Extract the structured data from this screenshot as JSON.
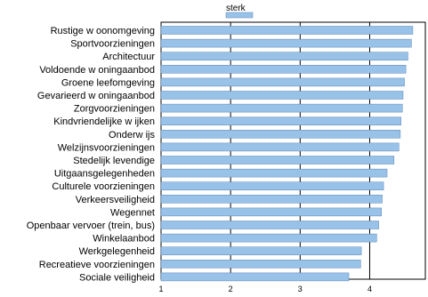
{
  "chart_data": {
    "type": "bar",
    "orientation": "horizontal",
    "categories": [
      "Rustige w oonomgeving",
      "Sportvoorzieningen",
      "Architectuur",
      "Voldoende w oningaanbod",
      "Groene leefomgeving",
      "Gevarieerd w oningaanbod",
      "Zorgvoorzieningen",
      "Kindvriendelijke w ijken",
      "Onderw ijs",
      "Welzijnsvoorzieningen",
      "Stedelijk levendige",
      "Uitgaansgelegenheden",
      "Culturele voorzieningen",
      "Verkeersveiligheid",
      "Wegennet",
      "Openbaar vervoer (trein, bus)",
      "Winkelaanbod",
      "Werkgelegenheid",
      "Recreatieve voorzieningen",
      "Sociale veiligheid"
    ],
    "series": [
      {
        "name": "sterk",
        "values": [
          4.62,
          4.6,
          4.55,
          4.52,
          4.5,
          4.48,
          4.47,
          4.45,
          4.44,
          4.42,
          4.35,
          4.25,
          4.2,
          4.18,
          4.17,
          4.13,
          4.1,
          3.88,
          3.87,
          3.7
        ]
      }
    ],
    "xlim": [
      1,
      4.8
    ],
    "xticks": [
      1,
      2,
      3,
      4
    ],
    "xlabel": "",
    "ylabel": "",
    "title": "",
    "legend": "top",
    "grid": true,
    "bar_color": "#99c2e8",
    "bar_edge_color": "#5a86b8",
    "grid_color": "#000000"
  }
}
